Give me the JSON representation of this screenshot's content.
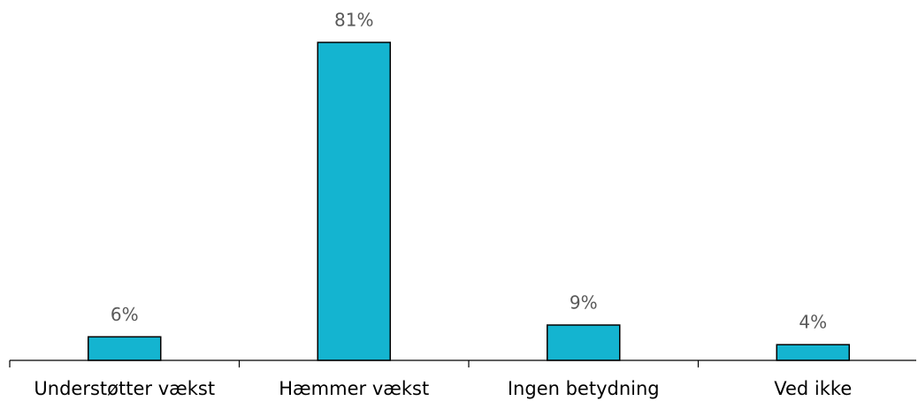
{
  "chart_data": {
    "type": "bar",
    "categories": [
      "Understøtter vækst",
      "Hæmmer vækst",
      "Ingen betydning",
      "Ved ikke"
    ],
    "values": [
      6,
      81,
      9,
      4
    ],
    "value_labels": [
      "6%",
      "81%",
      "9%",
      "4%"
    ],
    "color": "#14b4d0",
    "ylim": [
      0,
      90
    ]
  }
}
